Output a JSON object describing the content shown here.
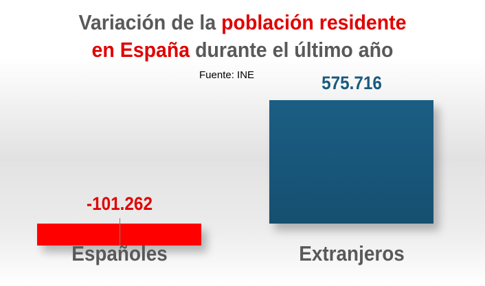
{
  "chart_data": {
    "type": "bar",
    "title": {
      "part1": "Variación de la ",
      "part2": "población residente",
      "part3": "en España",
      "part4": " durante el último año"
    },
    "source": "Fuente: INE",
    "categories": [
      "Españoles",
      "Extranjeros"
    ],
    "values": [
      -101262,
      575716
    ],
    "data_labels": [
      "-101.262",
      "575.716"
    ],
    "colors": [
      "#ff0000",
      "#1a5a7e"
    ],
    "label_colors": [
      "#e00000",
      "#1a5a7e"
    ]
  }
}
